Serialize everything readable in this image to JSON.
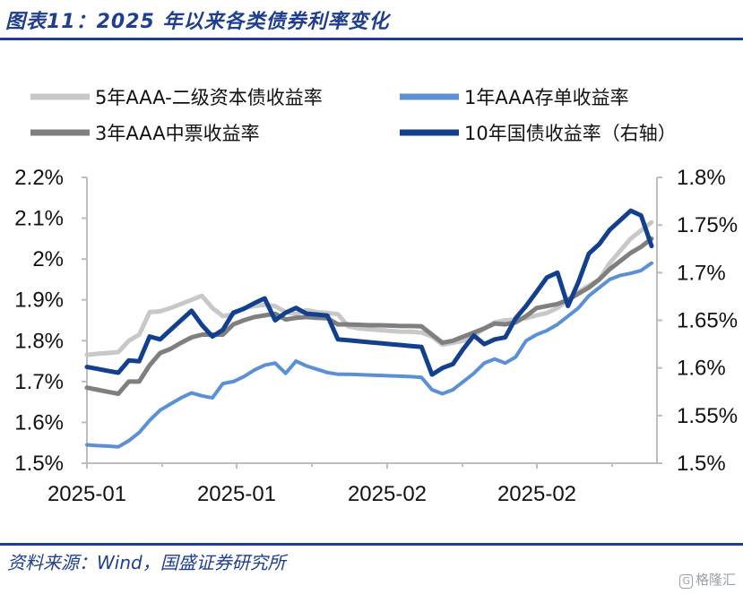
{
  "header": {
    "title": "图表11：2025 年以来各类债券利率变化"
  },
  "footer": {
    "source": "资料来源：Wind，国盛证券研究所",
    "watermark": "格隆汇",
    "watermark_mark": "G"
  },
  "chart_data": {
    "type": "line",
    "title": "图表11：2025 年以来各类债券利率变化",
    "xlabel": "",
    "ylabel": "",
    "x_tick_labels": [
      "2025-01",
      "2025-01",
      "2025-02",
      "2025-02"
    ],
    "y_left": {
      "ylim": [
        1.5,
        2.2
      ],
      "ticks": [
        "1.5%",
        "1.6%",
        "1.7%",
        "1.8%",
        "1.9%",
        "2%",
        "2.1%",
        "2.2%"
      ]
    },
    "y_right": {
      "ylim": [
        1.5,
        1.8
      ],
      "ticks": [
        "1.5%",
        "1.55%",
        "1.6%",
        "1.65%",
        "1.7%",
        "1.75%",
        "1.8%"
      ]
    },
    "grid": false,
    "legend": "top",
    "series": [
      {
        "name": "5年AAA-二级资本债收益率",
        "axis": "left",
        "color": "#c8c8c8",
        "values": [
          1.765,
          1.768,
          1.77,
          1.772,
          1.8,
          1.815,
          1.87,
          1.872,
          1.88,
          1.89,
          1.9,
          1.91,
          1.88,
          1.86,
          1.865,
          1.88,
          1.885,
          1.888,
          1.885,
          1.87,
          1.865,
          1.875,
          1.87,
          1.868,
          1.865,
          1.835,
          1.83,
          1.828,
          1.826,
          1.824,
          1.822,
          1.822,
          1.82,
          1.81,
          1.79,
          1.795,
          1.8,
          1.812,
          1.83,
          1.845,
          1.85,
          1.852,
          1.855,
          1.862,
          1.868,
          1.88,
          1.9,
          1.92,
          1.935,
          1.95,
          1.99,
          2.02,
          2.05,
          2.07,
          2.09
        ]
      },
      {
        "name": "3年AAA中票收益率",
        "axis": "left",
        "color": "#7f7f7f",
        "values": [
          1.685,
          1.68,
          1.675,
          1.67,
          1.7,
          1.7,
          1.74,
          1.77,
          1.78,
          1.795,
          1.808,
          1.815,
          1.815,
          1.815,
          1.84,
          1.85,
          1.858,
          1.862,
          1.866,
          1.852,
          1.856,
          1.858,
          1.856,
          1.855,
          1.84,
          1.84,
          1.839,
          1.838,
          1.838,
          1.837,
          1.836,
          1.836,
          1.835,
          1.815,
          1.795,
          1.8,
          1.81,
          1.82,
          1.83,
          1.842,
          1.84,
          1.845,
          1.86,
          1.88,
          1.885,
          1.89,
          1.9,
          1.915,
          1.93,
          1.95,
          1.975,
          1.995,
          2.015,
          2.03,
          2.05
        ]
      },
      {
        "name": "1年AAA存单收益率",
        "axis": "left",
        "color": "#5b8fd6",
        "values": [
          1.545,
          1.543,
          1.542,
          1.54,
          1.555,
          1.575,
          1.605,
          1.63,
          1.645,
          1.66,
          1.672,
          1.665,
          1.66,
          1.695,
          1.7,
          1.712,
          1.728,
          1.74,
          1.745,
          1.72,
          1.75,
          1.738,
          1.73,
          1.722,
          1.718,
          1.718,
          1.717,
          1.716,
          1.715,
          1.714,
          1.713,
          1.712,
          1.71,
          1.68,
          1.67,
          1.68,
          1.7,
          1.72,
          1.745,
          1.755,
          1.745,
          1.76,
          1.8,
          1.815,
          1.825,
          1.84,
          1.86,
          1.88,
          1.91,
          1.93,
          1.95,
          1.96,
          1.965,
          1.972,
          1.99
        ]
      },
      {
        "name": "10年国债收益率（右轴）",
        "axis": "right",
        "color": "#12408f",
        "values": [
          1.601,
          1.599,
          1.597,
          1.595,
          1.608,
          1.607,
          1.633,
          1.63,
          1.64,
          1.65,
          1.66,
          1.645,
          1.633,
          1.64,
          1.658,
          1.662,
          1.668,
          1.673,
          1.65,
          1.658,
          1.663,
          1.657,
          1.656,
          1.655,
          1.63,
          1.629,
          1.628,
          1.627,
          1.626,
          1.625,
          1.624,
          1.623,
          1.622,
          1.593,
          1.6,
          1.604,
          1.62,
          1.634,
          1.625,
          1.63,
          1.632,
          1.652,
          1.665,
          1.68,
          1.695,
          1.7,
          1.665,
          1.69,
          1.72,
          1.73,
          1.745,
          1.755,
          1.765,
          1.76,
          1.728
        ]
      }
    ]
  }
}
